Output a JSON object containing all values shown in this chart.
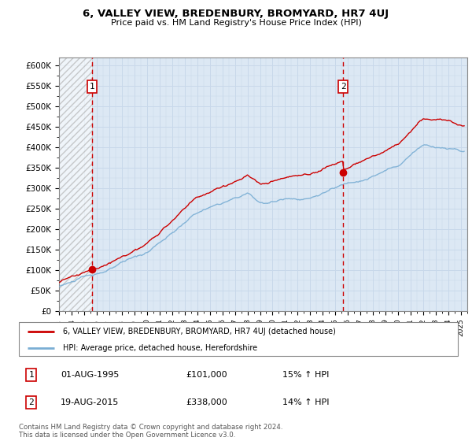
{
  "title": "6, VALLEY VIEW, BREDENBURY, BROMYARD, HR7 4UJ",
  "subtitle": "Price paid vs. HM Land Registry's House Price Index (HPI)",
  "ylabel_ticks": [
    0,
    50000,
    100000,
    150000,
    200000,
    250000,
    300000,
    350000,
    400000,
    450000,
    500000,
    550000,
    600000
  ],
  "ylabel_labels": [
    "£0",
    "£50K",
    "£100K",
    "£150K",
    "£200K",
    "£250K",
    "£300K",
    "£350K",
    "£400K",
    "£450K",
    "£500K",
    "£550K",
    "£600K"
  ],
  "ylim": [
    0,
    620000
  ],
  "xlim_start": 1993.0,
  "xlim_end": 2025.5,
  "hpi_color": "#7aaed4",
  "price_color": "#cc0000",
  "marker_color": "#cc0000",
  "vline_color": "#cc0000",
  "grid_color": "#c8d8ea",
  "bg_color": "#dce8f4",
  "legend_entry1": "6, VALLEY VIEW, BREDENBURY, BROMYARD, HR7 4UJ (detached house)",
  "legend_entry2": "HPI: Average price, detached house, Herefordshire",
  "sale1_date": "01-AUG-1995",
  "sale1_price": "£101,000",
  "sale1_hpi": "15% ↑ HPI",
  "sale2_date": "19-AUG-2015",
  "sale2_price": "£338,000",
  "sale2_hpi": "14% ↑ HPI",
  "footnote": "Contains HM Land Registry data © Crown copyright and database right 2024.\nThis data is licensed under the Open Government Licence v3.0.",
  "marker1_x": 1995.625,
  "marker1_y": 101000,
  "marker2_x": 2015.625,
  "marker2_y": 338000,
  "sale1_label": "1",
  "sale2_label": "2",
  "hatch_left_end": 1995.625,
  "xticks": [
    1993,
    1994,
    1995,
    1996,
    1997,
    1998,
    1999,
    2000,
    2001,
    2002,
    2003,
    2004,
    2005,
    2006,
    2007,
    2008,
    2009,
    2010,
    2011,
    2012,
    2013,
    2014,
    2015,
    2016,
    2017,
    2018,
    2019,
    2020,
    2021,
    2022,
    2023,
    2024,
    2025
  ]
}
